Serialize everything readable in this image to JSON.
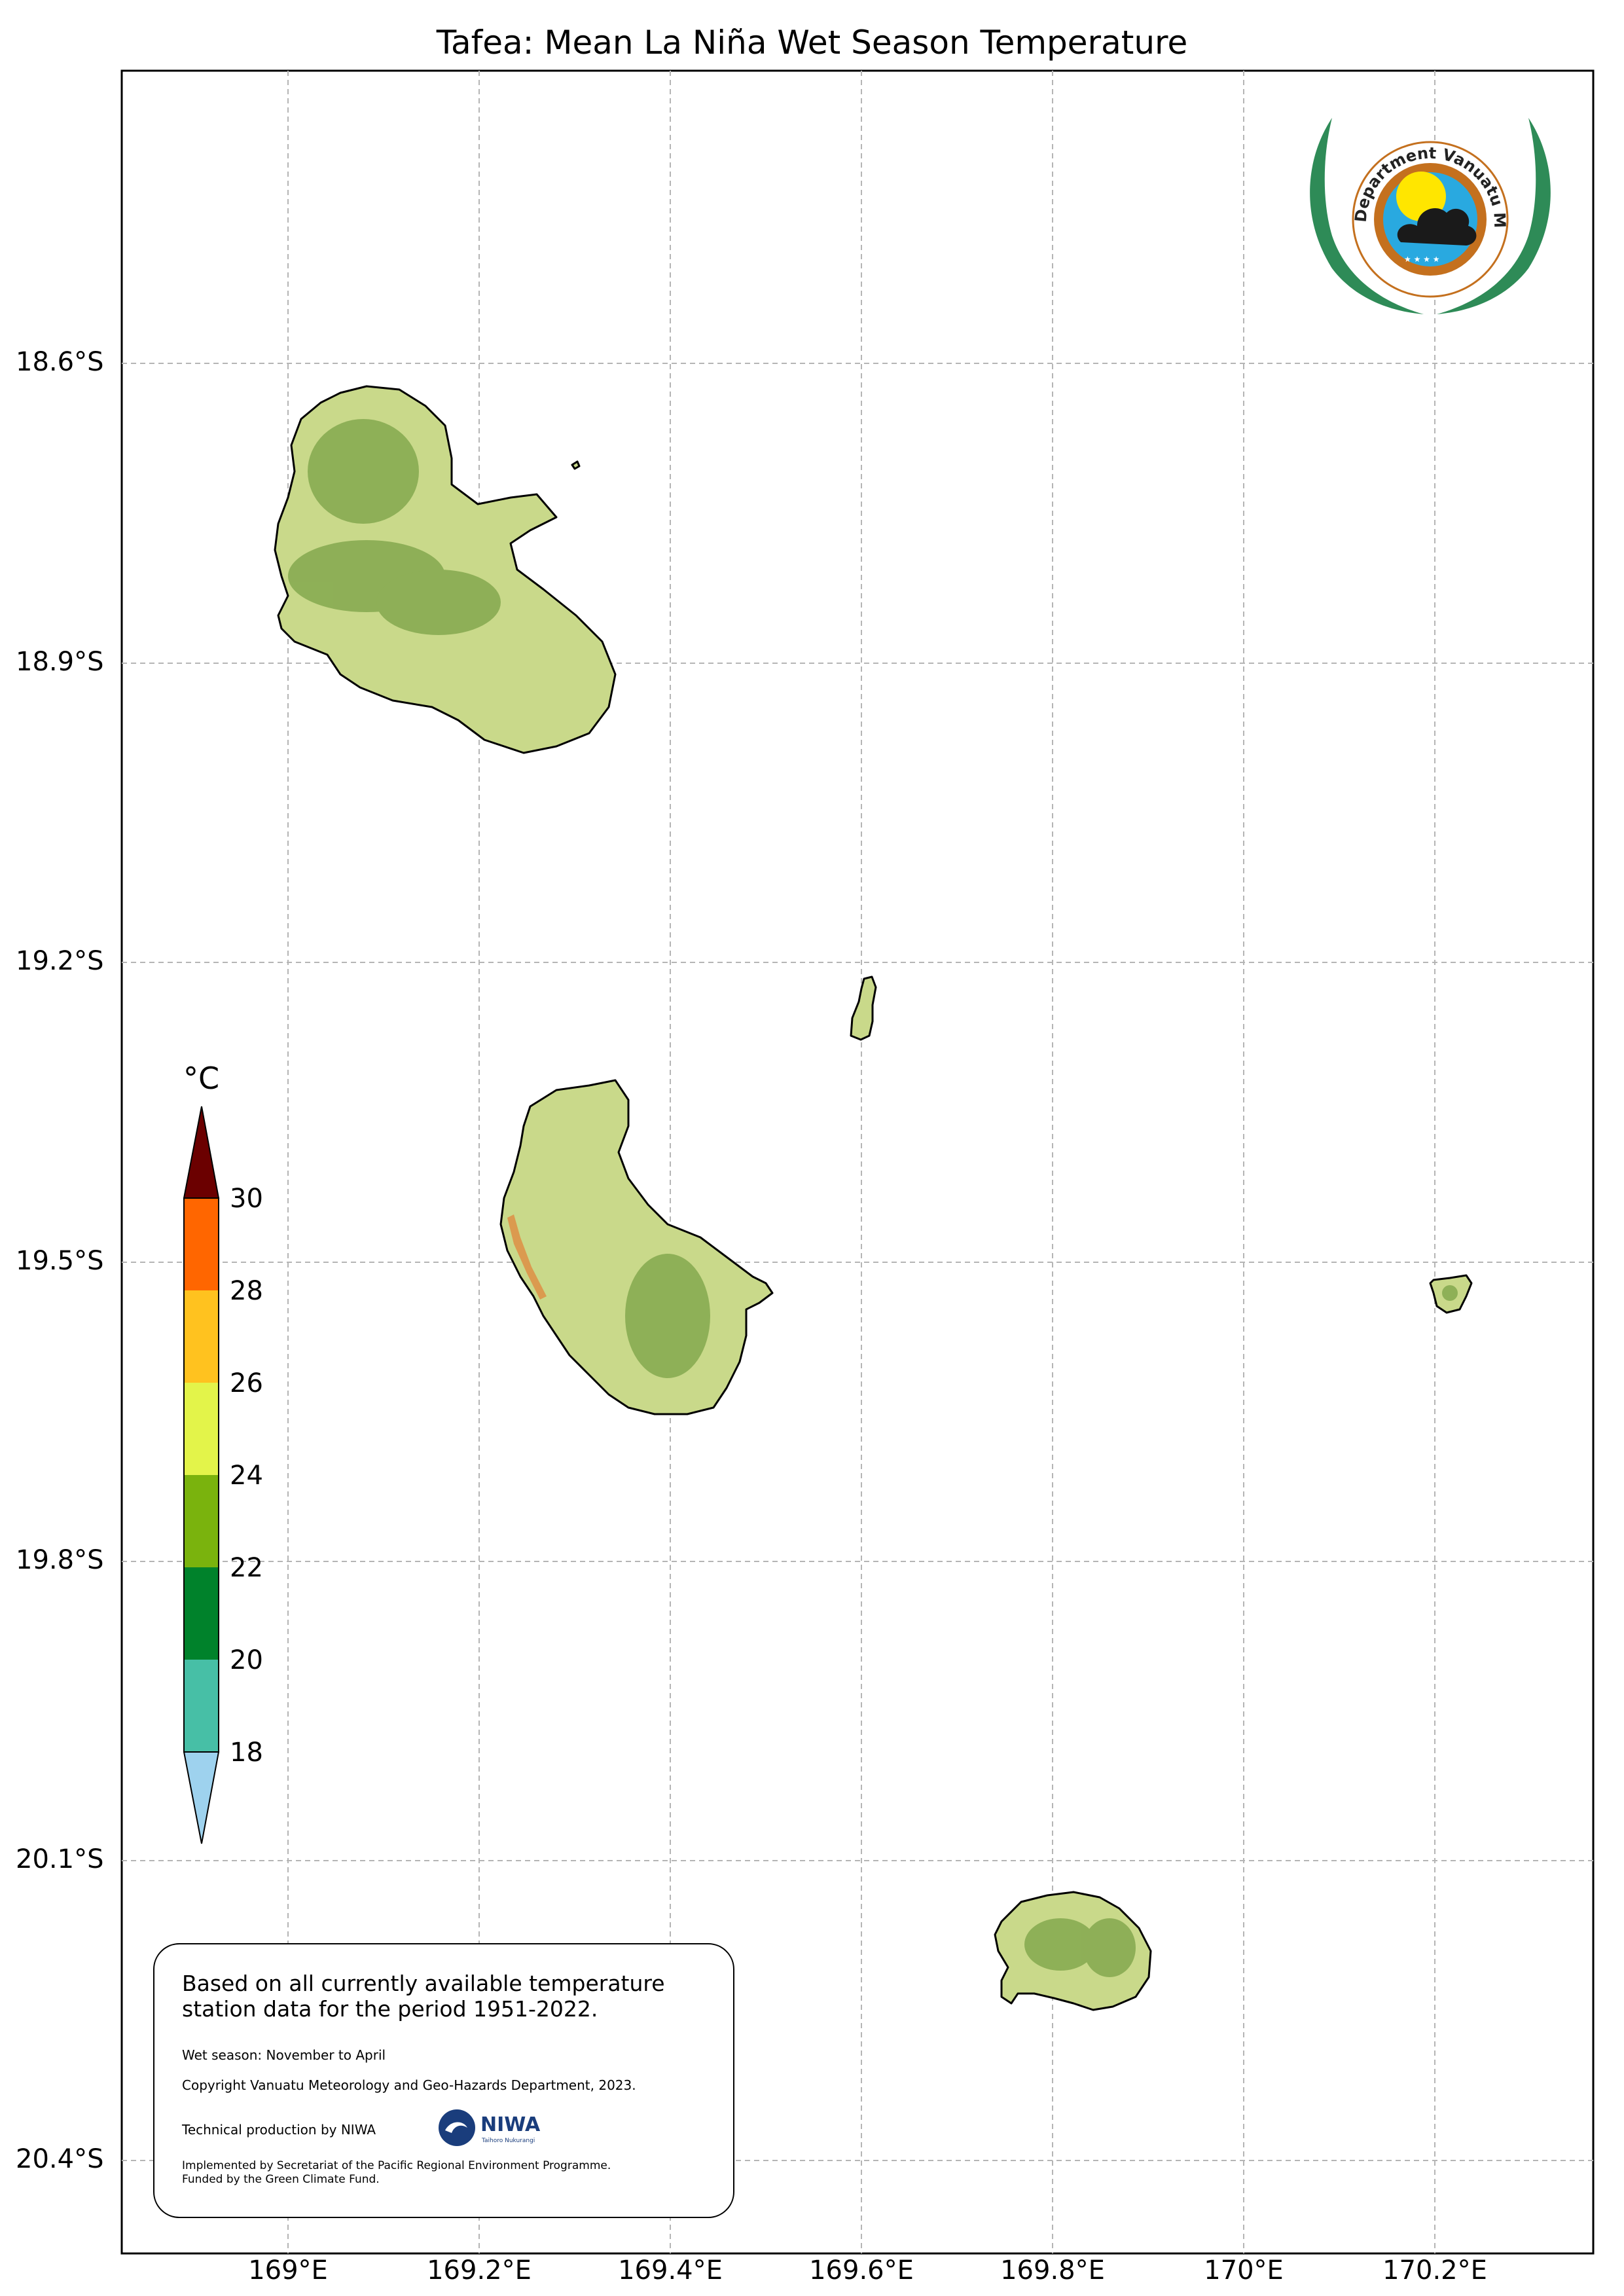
{
  "title": "Tafea: Mean La Niña Wet Season Temperature",
  "map": {
    "latitude_labels": [
      "18.6°S",
      "18.9°S",
      "19.2°S",
      "19.5°S",
      "19.8°S",
      "20.1°S",
      "20.4°S"
    ],
    "longitude_labels": [
      "169°E",
      "169.2°E",
      "169.4°E",
      "169.6°E",
      "169.8°E",
      "170°E",
      "170.2°E"
    ],
    "islands": [
      {
        "name_semantic": "erromango",
        "fill": "#c9d98a"
      },
      {
        "name_semantic": "tanna",
        "fill": "#c9d98a"
      },
      {
        "name_semantic": "aniwa",
        "fill": "#c9d98a"
      },
      {
        "name_semantic": "futuna",
        "fill": "#c9d98a"
      },
      {
        "name_semantic": "aneityum",
        "fill": "#c9d98a"
      }
    ],
    "relief_color": "#6f9a3c",
    "grid": true
  },
  "legend": {
    "unit": "°C",
    "tick_labels": [
      "30",
      "28",
      "26",
      "24",
      "22",
      "20",
      "18"
    ],
    "bins": [
      {
        "range": "above 30",
        "color": "#6b0000"
      },
      {
        "range": "28-30",
        "color": "#ff6600"
      },
      {
        "range": "26-28",
        "color": "#ffc21f"
      },
      {
        "range": "24-26",
        "color": "#e3f44a"
      },
      {
        "range": "22-24",
        "color": "#7ab30d"
      },
      {
        "range": "20-22",
        "color": "#00822b"
      },
      {
        "range": "18-20",
        "color": "#47bfa6"
      },
      {
        "range": "below 18",
        "color": "#9ed2ee"
      }
    ]
  },
  "info": {
    "main_text": "Based on all currently available temperature station data for the period 1951-2022.",
    "season": "Wet season: November to April",
    "copyright": "Copyright Vanuatu Meteorology and Geo-Hazards Department, 2023.",
    "technical": "Technical production by NIWA",
    "niwa_name": "NIWA",
    "niwa_sub": "Taihoro Nukurangi",
    "funding_line1": "Implemented by Secretariat of the Pacific Regional Environment Programme.",
    "funding_line2": "Funded by the Green Climate Fund."
  },
  "logo": {
    "text": "Department Vanuatu Meteorology and Geo-Hazards",
    "colors": {
      "laurel": "#2e8b57",
      "ring": "#c4701e",
      "sky": "#29a9e0",
      "sun": "#ffe600"
    }
  }
}
